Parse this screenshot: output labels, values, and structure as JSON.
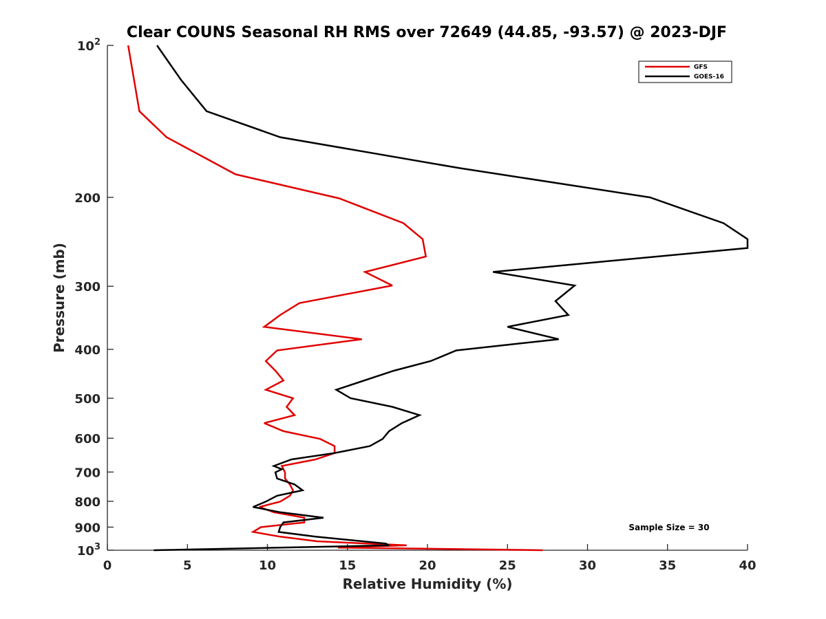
{
  "chart_data": {
    "type": "line",
    "title": "Clear COUNS Seasonal RH RMS over 72649 (44.85, -93.57) @ 2023-DJF",
    "xlabel": "Relative Humidity (%)",
    "ylabel": "Pressure (mb)",
    "xlim": [
      0,
      40
    ],
    "ylim": [
      100,
      1000
    ],
    "yscale": "log",
    "y_reversed": true,
    "x_ticks": [
      {
        "value": 0,
        "label": "0"
      },
      {
        "value": 5,
        "label": "5"
      },
      {
        "value": 10,
        "label": "10"
      },
      {
        "value": 15,
        "label": "15"
      },
      {
        "value": 20,
        "label": "20"
      },
      {
        "value": 25,
        "label": "25"
      },
      {
        "value": 30,
        "label": "30"
      },
      {
        "value": 35,
        "label": "35"
      },
      {
        "value": 40,
        "label": "40"
      }
    ],
    "y_ticks": [
      {
        "value": 100,
        "base": "10",
        "exp": "2"
      },
      {
        "value": 200,
        "label": "200"
      },
      {
        "value": 300,
        "label": "300"
      },
      {
        "value": 400,
        "label": "400"
      },
      {
        "value": 500,
        "label": "500"
      },
      {
        "value": 600,
        "label": "600"
      },
      {
        "value": 700,
        "label": "700"
      },
      {
        "value": 800,
        "label": "800"
      },
      {
        "value": 900,
        "label": "900"
      },
      {
        "value": 1000,
        "base": "10",
        "exp": "3"
      }
    ],
    "grid": false,
    "legend_position": "top-right",
    "annotation": "Sample Size = 30",
    "series": [
      {
        "name": "GFS",
        "color": "#e00000",
        "points": [
          [
            1.3,
            100
          ],
          [
            2.0,
            135
          ],
          [
            3.7,
            152
          ],
          [
            8.0,
            180
          ],
          [
            14.5,
            201
          ],
          [
            18.5,
            225
          ],
          [
            19.7,
            242
          ],
          [
            19.9,
            262
          ],
          [
            16.1,
            281
          ],
          [
            17.8,
            299
          ],
          [
            12.0,
            324
          ],
          [
            10.8,
            342
          ],
          [
            9.8,
            361
          ],
          [
            15.9,
            382
          ],
          [
            10.6,
            402
          ],
          [
            9.9,
            422
          ],
          [
            10.5,
            441
          ],
          [
            11.0,
            461
          ],
          [
            9.9,
            481
          ],
          [
            11.6,
            500
          ],
          [
            11.2,
            520
          ],
          [
            11.7,
            540
          ],
          [
            9.8,
            560
          ],
          [
            11.0,
            581
          ],
          [
            13.3,
            602
          ],
          [
            14.2,
            622
          ],
          [
            14.2,
            642
          ],
          [
            13.0,
            661
          ],
          [
            10.9,
            681
          ],
          [
            11.1,
            701
          ],
          [
            11.1,
            721
          ],
          [
            11.4,
            741
          ],
          [
            11.6,
            761
          ],
          [
            11.4,
            780
          ],
          [
            10.8,
            801
          ],
          [
            9.5,
            821
          ],
          [
            10.4,
            841
          ],
          [
            12.3,
            862
          ],
          [
            12.3,
            881
          ],
          [
            9.6,
            900
          ],
          [
            9.1,
            920
          ],
          [
            10.8,
            940
          ],
          [
            13.1,
            960
          ],
          [
            18.7,
            978
          ],
          [
            14.4,
            988
          ],
          [
            27.2,
            1000
          ]
        ]
      },
      {
        "name": "GOES-16",
        "color": "#000000",
        "points": [
          [
            3.1,
            100
          ],
          [
            4.6,
            117
          ],
          [
            6.2,
            135
          ],
          [
            10.8,
            152
          ],
          [
            22.0,
            175
          ],
          [
            33.9,
            200
          ],
          [
            38.5,
            225
          ],
          [
            40.0,
            242
          ],
          [
            40.0,
            252
          ],
          [
            24.1,
            281
          ],
          [
            29.2,
            299
          ],
          [
            28.0,
            321
          ],
          [
            28.8,
            342
          ],
          [
            25.0,
            361
          ],
          [
            28.2,
            382
          ],
          [
            21.8,
            402
          ],
          [
            20.2,
            422
          ],
          [
            17.9,
            441
          ],
          [
            14.3,
            481
          ],
          [
            15.2,
            500
          ],
          [
            17.8,
            520
          ],
          [
            19.5,
            540
          ],
          [
            18.4,
            560
          ],
          [
            17.6,
            581
          ],
          [
            17.2,
            602
          ],
          [
            16.4,
            622
          ],
          [
            14.2,
            642
          ],
          [
            11.5,
            661
          ],
          [
            10.4,
            681
          ],
          [
            10.9,
            691
          ],
          [
            10.5,
            701
          ],
          [
            10.6,
            721
          ],
          [
            11.7,
            741
          ],
          [
            12.2,
            761
          ],
          [
            10.6,
            780
          ],
          [
            9.9,
            801
          ],
          [
            9.1,
            821
          ],
          [
            10.8,
            841
          ],
          [
            13.5,
            862
          ],
          [
            11.0,
            881
          ],
          [
            10.8,
            900
          ],
          [
            10.7,
            920
          ],
          [
            13.0,
            940
          ],
          [
            17.4,
            970
          ],
          [
            17.6,
            978
          ],
          [
            2.9,
            1000
          ]
        ]
      }
    ]
  }
}
